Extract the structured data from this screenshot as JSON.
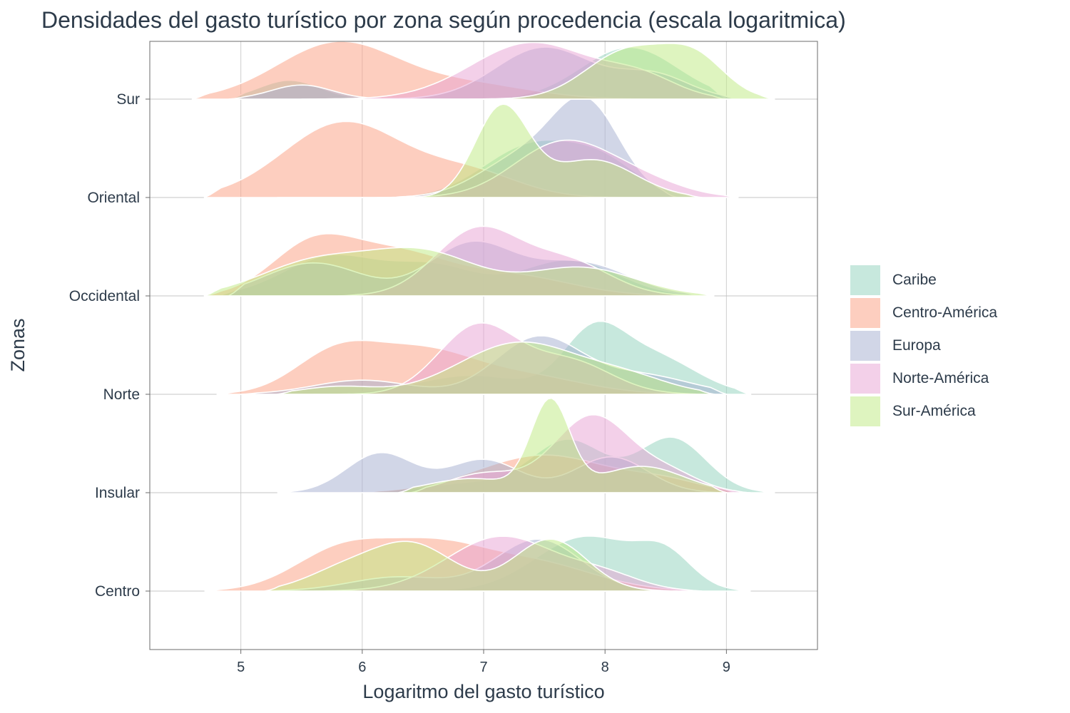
{
  "chart_data": {
    "type": "ridgeline-density",
    "title": "Densidades del gasto turístico por zona según procedencia (escala logaritmica)",
    "xlabel": "Logaritmo del gasto turístico",
    "ylabel": "Zonas",
    "xlim": [
      4.25,
      9.75
    ],
    "x_ticks": [
      5,
      6,
      7,
      8,
      9
    ],
    "x_tick_labels": [
      "5",
      "6",
      "7",
      "8",
      "9"
    ],
    "zones": [
      "Centro",
      "Insular",
      "Norte",
      "Occidental",
      "Oriental",
      "Sur"
    ],
    "grid": true,
    "legend_position": "right",
    "series": [
      {
        "name": "Caribe",
        "color": "#8fd1bb"
      },
      {
        "name": "Centro-América",
        "color": "#fc9e80"
      },
      {
        "name": "Europa",
        "color": "#a3aed0"
      },
      {
        "name": "Norte-América",
        "color": "#e7a2d3"
      },
      {
        "name": "Sur-América",
        "color": "#bee97f"
      }
    ],
    "densities": {
      "Centro": {
        "Caribe": {
          "range": [
            5.2,
            9.2
          ],
          "peaks": [
            [
              7.85,
              0.58,
              0.42
            ],
            [
              8.5,
              0.32,
              0.22
            ]
          ]
        },
        "Centro-América": {
          "range": [
            4.7,
            8.8
          ],
          "peaks": [
            [
              5.85,
              0.45,
              0.4
            ],
            [
              6.6,
              0.4,
              0.4
            ],
            [
              7.4,
              0.3,
              0.5
            ]
          ]
        },
        "Europa": {
          "range": [
            5.2,
            8.7
          ],
          "peaks": [
            [
              7.45,
              0.55,
              0.35
            ],
            [
              6.3,
              0.15,
              0.4
            ]
          ]
        },
        "Norte-América": {
          "range": [
            5.6,
            8.8
          ],
          "peaks": [
            [
              7.15,
              0.58,
              0.45
            ],
            [
              8.0,
              0.15,
              0.3
            ]
          ]
        },
        "Sur-América": {
          "range": [
            5.2,
            8.6
          ],
          "peaks": [
            [
              6.4,
              0.5,
              0.35
            ],
            [
              7.55,
              0.55,
              0.3
            ],
            [
              5.8,
              0.18,
              0.3
            ]
          ]
        }
      },
      "Insular": {
        "Caribe": {
          "range": [
            6.0,
            9.4
          ],
          "peaks": [
            [
              8.55,
              0.58,
              0.28
            ],
            [
              7.7,
              0.55,
              0.3
            ],
            [
              6.9,
              0.1,
              0.4
            ]
          ]
        },
        "Centro-América": {
          "range": [
            6.0,
            9.1
          ],
          "peaks": [
            [
              7.5,
              0.4,
              0.55
            ],
            [
              8.5,
              0.1,
              0.3
            ]
          ]
        },
        "Europa": {
          "range": [
            5.3,
            9.0
          ],
          "peaks": [
            [
              6.15,
              0.42,
              0.28
            ],
            [
              7.0,
              0.35,
              0.3
            ],
            [
              8.05,
              0.38,
              0.3
            ]
          ]
        },
        "Norte-América": {
          "range": [
            6.4,
            9.2
          ],
          "peaks": [
            [
              7.9,
              0.82,
              0.32
            ],
            [
              8.55,
              0.18,
              0.25
            ],
            [
              7.0,
              0.2,
              0.3
            ]
          ]
        },
        "Sur-América": {
          "range": [
            6.3,
            9.0
          ],
          "peaks": [
            [
              7.55,
              0.95,
              0.16
            ],
            [
              8.3,
              0.28,
              0.35
            ],
            [
              6.9,
              0.15,
              0.35
            ]
          ]
        }
      },
      "Norte": {
        "Caribe": {
          "range": [
            5.3,
            9.2
          ],
          "peaks": [
            [
              7.9,
              0.6,
              0.25
            ],
            [
              8.4,
              0.4,
              0.35
            ],
            [
              6.9,
              0.2,
              0.45
            ]
          ]
        },
        "Centro-América": {
          "range": [
            4.8,
            8.9
          ],
          "peaks": [
            [
              5.8,
              0.45,
              0.35
            ],
            [
              6.5,
              0.4,
              0.4
            ],
            [
              7.3,
              0.2,
              0.5
            ]
          ]
        },
        "Europa": {
          "range": [
            5.0,
            9.0
          ],
          "peaks": [
            [
              7.45,
              0.6,
              0.35
            ],
            [
              6.0,
              0.15,
              0.4
            ],
            [
              8.3,
              0.2,
              0.4
            ]
          ]
        },
        "Norte-América": {
          "range": [
            5.6,
            8.8
          ],
          "peaks": [
            [
              6.95,
              0.72,
              0.32
            ],
            [
              7.7,
              0.35,
              0.35
            ]
          ]
        },
        "Sur-América": {
          "range": [
            5.3,
            8.9
          ],
          "peaks": [
            [
              7.3,
              0.55,
              0.5
            ],
            [
              8.2,
              0.15,
              0.35
            ],
            [
              5.8,
              0.08,
              0.3
            ]
          ]
        }
      },
      "Occidental": {
        "Caribe": {
          "range": [
            4.8,
            8.9
          ],
          "peaks": [
            [
              5.75,
              0.42,
              0.4
            ],
            [
              6.6,
              0.3,
              0.35
            ],
            [
              7.7,
              0.38,
              0.4
            ]
          ]
        },
        "Centro-América": {
          "range": [
            4.7,
            8.8
          ],
          "peaks": [
            [
              5.6,
              0.55,
              0.35
            ],
            [
              6.3,
              0.4,
              0.4
            ],
            [
              7.2,
              0.22,
              0.5
            ]
          ]
        },
        "Europa": {
          "range": [
            4.9,
            8.8
          ],
          "peaks": [
            [
              5.6,
              0.35,
              0.4
            ],
            [
              6.9,
              0.55,
              0.35
            ],
            [
              7.8,
              0.35,
              0.4
            ]
          ]
        },
        "Norte-América": {
          "range": [
            5.8,
            8.9
          ],
          "peaks": [
            [
              6.95,
              0.7,
              0.35
            ],
            [
              7.7,
              0.35,
              0.35
            ]
          ]
        },
        "Sur-América": {
          "range": [
            4.7,
            8.9
          ],
          "peaks": [
            [
              5.6,
              0.35,
              0.45
            ],
            [
              6.5,
              0.45,
              0.45
            ],
            [
              7.8,
              0.3,
              0.45
            ]
          ]
        }
      },
      "Oriental": {
        "Caribe": {
          "range": [
            5.2,
            8.8
          ],
          "peaks": [
            [
              7.4,
              0.55,
              0.4
            ],
            [
              8.0,
              0.3,
              0.3
            ]
          ]
        },
        "Centro-América": {
          "range": [
            4.7,
            8.8
          ],
          "peaks": [
            [
              5.85,
              0.8,
              0.5
            ],
            [
              6.9,
              0.25,
              0.4
            ]
          ]
        },
        "Europa": {
          "range": [
            6.2,
            8.6
          ],
          "peaks": [
            [
              7.85,
              0.95,
              0.28
            ],
            [
              7.3,
              0.4,
              0.35
            ]
          ]
        },
        "Norte-América": {
          "range": [
            5.3,
            9.1
          ],
          "peaks": [
            [
              7.65,
              0.58,
              0.4
            ],
            [
              8.3,
              0.15,
              0.35
            ]
          ]
        },
        "Sur-América": {
          "range": [
            6.3,
            8.8
          ],
          "peaks": [
            [
              7.15,
              0.95,
              0.22
            ],
            [
              7.9,
              0.4,
              0.35
            ]
          ]
        }
      },
      "Sur": {
        "Caribe": {
          "range": [
            4.9,
            9.0
          ],
          "peaks": [
            [
              8.2,
              0.55,
              0.4
            ],
            [
              5.4,
              0.2,
              0.25
            ]
          ]
        },
        "Centro-América": {
          "range": [
            4.6,
            9.1
          ],
          "peaks": [
            [
              5.8,
              0.6,
              0.5
            ],
            [
              6.9,
              0.15,
              0.5
            ]
          ]
        },
        "Europa": {
          "range": [
            4.9,
            9.1
          ],
          "peaks": [
            [
              7.5,
              0.55,
              0.4
            ],
            [
              8.4,
              0.25,
              0.3
            ],
            [
              5.5,
              0.15,
              0.25
            ]
          ]
        },
        "Norte-América": {
          "range": [
            5.5,
            9.0
          ],
          "peaks": [
            [
              7.4,
              0.6,
              0.5
            ],
            [
              8.3,
              0.2,
              0.3
            ]
          ]
        },
        "Sur-América": {
          "range": [
            6.4,
            9.4
          ],
          "peaks": [
            [
              8.2,
              0.52,
              0.35
            ],
            [
              8.75,
              0.38,
              0.25
            ]
          ]
        }
      }
    }
  }
}
